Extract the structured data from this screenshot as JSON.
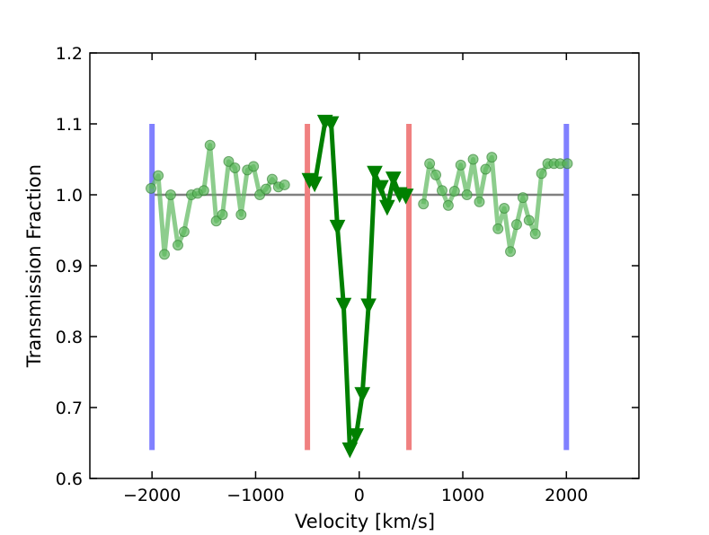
{
  "chart_data": {
    "type": "line",
    "xlabel": "Velocity [km/s]",
    "ylabel": "Transmission Fraction",
    "xlim": [
      -2600,
      2700
    ],
    "ylim": [
      0.6,
      1.2
    ],
    "x_ticks": [
      -2000,
      -1000,
      0,
      1000,
      2000
    ],
    "x_tick_labels": [
      "−2000",
      "−1000",
      "0",
      "1000",
      "2000"
    ],
    "y_ticks": [
      0.6,
      0.7,
      0.8,
      0.9,
      1.0,
      1.1,
      1.2
    ],
    "y_tick_labels": [
      "0.6",
      "0.7",
      "0.8",
      "0.9",
      "1.0",
      "1.1",
      "1.2"
    ],
    "grid": false,
    "baseline": {
      "x": [
        -2000,
        2000
      ],
      "y": 1.0,
      "color": "#808080"
    },
    "vertical_lines": [
      {
        "x": -2000,
        "y": [
          0.64,
          1.1
        ],
        "color": "#8080ff"
      },
      {
        "x": 2000,
        "y": [
          0.64,
          1.1
        ],
        "color": "#8080ff"
      },
      {
        "x": -500,
        "y": [
          0.64,
          1.1
        ],
        "color": "#f08080"
      },
      {
        "x": 480,
        "y": [
          0.64,
          1.1
        ],
        "color": "#f08080"
      }
    ],
    "series": [
      {
        "marker": "circle",
        "color": "#5cb85c",
        "segments": [
          {
            "x": [
              -2010,
              -1940,
              -1880,
              -1820,
              -1750,
              -1690,
              -1620,
              -1560,
              -1500,
              -1440,
              -1380,
              -1320,
              -1260,
              -1200,
              -1140,
              -1080,
              -1020,
              -960,
              -900,
              -840,
              -780,
              -720
            ],
            "y": [
              1.009,
              1.027,
              0.916,
              1.0,
              0.929,
              0.948,
              1.0,
              1.002,
              1.006,
              1.07,
              0.963,
              0.972,
              1.047,
              1.038,
              0.972,
              1.035,
              1.04,
              1.0,
              1.008,
              1.022,
              1.011,
              1.014
            ]
          },
          {
            "x": [
              620,
              680,
              740,
              800,
              860,
              920,
              980,
              1040,
              1100,
              1160,
              1220,
              1280,
              1340,
              1400,
              1460,
              1520,
              1580,
              1640,
              1700,
              1760,
              1820,
              1880,
              1940,
              2010
            ],
            "y": [
              0.987,
              1.044,
              1.028,
              1.006,
              0.985,
              1.005,
              1.042,
              1.0,
              1.05,
              0.99,
              1.036,
              1.053,
              0.952,
              0.981,
              0.92,
              0.958,
              0.996,
              0.964,
              0.945,
              1.03,
              1.044,
              1.044,
              1.044,
              1.044
            ]
          }
        ]
      },
      {
        "marker": "triangle-down",
        "color": "#008000",
        "segments": [
          {
            "x": [
              -480,
              -430,
              -330,
              -270,
              -210,
              -150,
              -90,
              -30,
              30,
              90,
              150,
              210,
              270,
              330,
              390,
              450
            ],
            "y": [
              1.02,
              1.015,
              1.102,
              1.1,
              0.954,
              0.844,
              0.64,
              0.66,
              0.718,
              0.843,
              1.03,
              1.01,
              0.982,
              1.022,
              1.0,
              0.998
            ]
          }
        ]
      }
    ]
  }
}
